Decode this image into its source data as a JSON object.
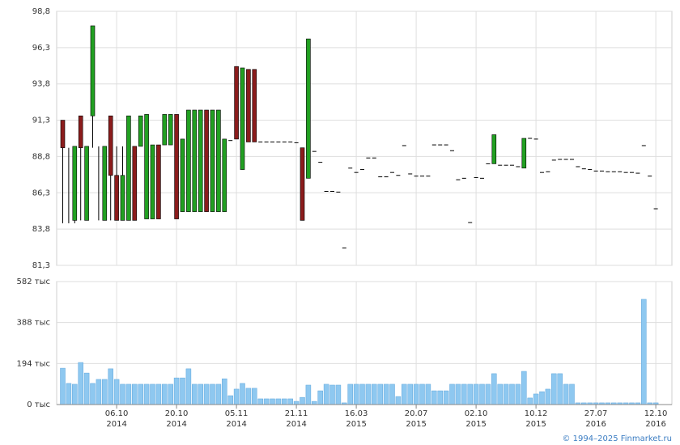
{
  "chart_data": [
    {
      "type": "candlestick",
      "up_color": "#22a022",
      "down_color": "#8b1c1c",
      "ylim": [
        81.3,
        98.8
      ],
      "yticks": [
        {
          "value": 81.3,
          "label": "81,3"
        },
        {
          "value": 83.8,
          "label": "83,8"
        },
        {
          "value": 86.3,
          "label": "86,3"
        },
        {
          "value": 88.8,
          "label": "88,8"
        },
        {
          "value": 91.3,
          "label": "91,3"
        },
        {
          "value": 93.8,
          "label": "93,8"
        },
        {
          "value": 96.3,
          "label": "96,3"
        },
        {
          "value": 98.8,
          "label": "98,8"
        }
      ],
      "xticks": [
        9,
        19,
        29,
        39,
        49,
        59,
        69,
        79,
        89,
        99
      ],
      "ohlc": [
        [
          91.3,
          91.3,
          84.2,
          89.4
        ],
        [
          89.4,
          89.4,
          84.2,
          89.4
        ],
        [
          84.4,
          89.5,
          84.2,
          89.5
        ],
        [
          91.6,
          91.6,
          84.4,
          89.4
        ],
        [
          84.4,
          89.5,
          84.4,
          89.5
        ],
        [
          91.6,
          97.8,
          89.4,
          97.8
        ],
        [
          89.5,
          89.5,
          84.4,
          89.5
        ],
        [
          84.4,
          89.5,
          84.4,
          89.5
        ],
        [
          91.6,
          91.6,
          84.4,
          87.5
        ],
        [
          87.5,
          89.5,
          84.4,
          84.4
        ],
        [
          84.4,
          89.5,
          84.4,
          87.5
        ],
        [
          84.4,
          91.6,
          84.4,
          91.6
        ],
        [
          89.5,
          89.5,
          84.4,
          84.4
        ],
        [
          89.5,
          91.6,
          89.5,
          91.6
        ],
        [
          84.5,
          91.7,
          84.5,
          91.7
        ],
        [
          84.5,
          89.6,
          84.5,
          89.6
        ],
        [
          89.6,
          89.6,
          84.5,
          84.5
        ],
        [
          89.6,
          91.7,
          89.6,
          91.7
        ],
        [
          89.6,
          91.7,
          89.6,
          91.7
        ],
        [
          91.7,
          91.7,
          84.5,
          84.5
        ],
        [
          85.0,
          90.0,
          85.0,
          90.0
        ],
        [
          85.0,
          92.0,
          85.0,
          92.0
        ],
        [
          85.0,
          92.0,
          85.0,
          92.0
        ],
        [
          85.0,
          92.0,
          85.0,
          92.0
        ],
        [
          92.0,
          92.0,
          85.0,
          85.0
        ],
        [
          85.0,
          92.0,
          85.0,
          92.0
        ],
        [
          85.0,
          92.0,
          85.0,
          92.0
        ],
        [
          85.0,
          90.0,
          85.0,
          90.0
        ],
        [
          89.9,
          89.9,
          89.9,
          89.9
        ],
        [
          95.0,
          95.0,
          90.0,
          90.0
        ],
        [
          87.9,
          94.9,
          87.9,
          94.9
        ],
        [
          94.8,
          94.8,
          89.8,
          89.8
        ],
        [
          94.8,
          94.8,
          89.8,
          89.8
        ],
        [
          89.8,
          89.8,
          89.8,
          89.8
        ],
        [
          89.8,
          89.8,
          89.8,
          89.8
        ],
        [
          89.8,
          89.8,
          89.8,
          89.8
        ],
        [
          89.8,
          89.8,
          89.8,
          89.8
        ],
        [
          89.8,
          89.8,
          89.8,
          89.8
        ],
        [
          89.8,
          89.8,
          89.8,
          89.8
        ],
        [
          89.75,
          89.75,
          89.75,
          89.75
        ],
        [
          89.4,
          89.4,
          84.4,
          84.4
        ],
        [
          87.3,
          96.9,
          87.3,
          96.9
        ],
        [
          89.15,
          89.15,
          89.15,
          89.15
        ],
        [
          88.4,
          88.4,
          88.4,
          88.4
        ],
        [
          86.4,
          86.4,
          86.4,
          86.4
        ],
        [
          86.4,
          86.4,
          86.4,
          86.4
        ],
        [
          86.35,
          86.35,
          86.35,
          86.35
        ],
        [
          82.5,
          82.5,
          82.5,
          82.5
        ],
        [
          88.0,
          88.0,
          88.0,
          88.0
        ],
        [
          87.7,
          87.7,
          87.7,
          87.7
        ],
        [
          87.9,
          87.9,
          87.9,
          87.9
        ],
        [
          88.7,
          88.7,
          88.7,
          88.7
        ],
        [
          88.7,
          88.7,
          88.7,
          88.7
        ],
        [
          87.4,
          87.4,
          87.4,
          87.4
        ],
        [
          87.4,
          87.4,
          87.4,
          87.4
        ],
        [
          87.7,
          87.7,
          87.7,
          87.7
        ],
        [
          87.5,
          87.5,
          87.5,
          87.5
        ],
        [
          89.55,
          89.55,
          89.55,
          89.55
        ],
        [
          87.6,
          87.6,
          87.6,
          87.6
        ],
        [
          87.45,
          87.45,
          87.45,
          87.45
        ],
        [
          87.45,
          87.45,
          87.45,
          87.45
        ],
        [
          87.45,
          87.45,
          87.45,
          87.45
        ],
        [
          89.6,
          89.6,
          89.6,
          89.6
        ],
        [
          89.6,
          89.6,
          89.6,
          89.6
        ],
        [
          89.6,
          89.6,
          89.6,
          89.6
        ],
        [
          89.2,
          89.2,
          89.2,
          89.2
        ],
        [
          87.2,
          87.2,
          87.2,
          87.2
        ],
        [
          87.3,
          87.3,
          87.3,
          87.3
        ],
        [
          84.25,
          84.25,
          84.25,
          84.25
        ],
        [
          87.35,
          87.35,
          87.35,
          87.35
        ],
        [
          87.3,
          87.3,
          87.3,
          87.3
        ],
        [
          88.3,
          88.3,
          88.3,
          88.3
        ],
        [
          88.3,
          90.3,
          88.3,
          90.3
        ],
        [
          88.2,
          88.2,
          88.2,
          88.2
        ],
        [
          88.2,
          88.2,
          88.2,
          88.2
        ],
        [
          88.2,
          88.2,
          88.2,
          88.2
        ],
        [
          88.1,
          88.1,
          88.1,
          88.1
        ],
        [
          88.0,
          90.05,
          88.0,
          90.05
        ],
        [
          90.05,
          90.05,
          90.05,
          90.05
        ],
        [
          90.0,
          90.0,
          90.0,
          90.0
        ],
        [
          87.7,
          87.7,
          87.7,
          87.7
        ],
        [
          87.75,
          87.75,
          87.75,
          87.75
        ],
        [
          88.55,
          88.55,
          88.55,
          88.55
        ],
        [
          88.6,
          88.6,
          88.6,
          88.6
        ],
        [
          88.6,
          88.6,
          88.6,
          88.6
        ],
        [
          88.6,
          88.6,
          88.6,
          88.6
        ],
        [
          88.1,
          88.1,
          88.1,
          88.1
        ],
        [
          87.95,
          87.95,
          87.95,
          87.95
        ],
        [
          87.9,
          87.9,
          87.9,
          87.9
        ],
        [
          87.8,
          87.8,
          87.8,
          87.8
        ],
        [
          87.8,
          87.8,
          87.8,
          87.8
        ],
        [
          87.75,
          87.75,
          87.75,
          87.75
        ],
        [
          87.75,
          87.75,
          87.75,
          87.75
        ],
        [
          87.75,
          87.75,
          87.75,
          87.75
        ],
        [
          87.7,
          87.7,
          87.7,
          87.7
        ],
        [
          87.7,
          87.7,
          87.7,
          87.7
        ],
        [
          87.65,
          87.65,
          87.65,
          87.65
        ],
        [
          89.55,
          89.55,
          89.55,
          89.55
        ],
        [
          87.45,
          87.45,
          87.45,
          87.45
        ],
        [
          85.2,
          85.2,
          85.2,
          85.2
        ]
      ]
    },
    {
      "type": "bar",
      "color": "#8ec8f0",
      "edge_color": "#5fa6dc",
      "ylim": [
        0,
        582
      ],
      "yticks": [
        {
          "value": 0,
          "label": "0 тыс"
        },
        {
          "value": 194,
          "label": "194 тыс"
        },
        {
          "value": 388,
          "label": "388 тыс"
        },
        {
          "value": 582,
          "label": "582 тыс"
        }
      ],
      "xticks": [
        {
          "value": 9,
          "label": [
            "06.10",
            "2014"
          ]
        },
        {
          "value": 19,
          "label": [
            "20.10",
            "2014"
          ]
        },
        {
          "value": 29,
          "label": [
            "05.11",
            "2014"
          ]
        },
        {
          "value": 39,
          "label": [
            "21.11",
            "2014"
          ]
        },
        {
          "value": 49,
          "label": [
            "16.03",
            "2015"
          ]
        },
        {
          "value": 59,
          "label": [
            "20.07",
            "2015"
          ]
        },
        {
          "value": 69,
          "label": [
            "02.10",
            "2015"
          ]
        },
        {
          "value": 79,
          "label": [
            "10.12",
            "2015"
          ]
        },
        {
          "value": 89,
          "label": [
            "27.07",
            "2016"
          ]
        },
        {
          "value": 99,
          "label": [
            "12.10",
            "2016"
          ]
        }
      ],
      "values": [
        172,
        100,
        96,
        199,
        149,
        100,
        119,
        119,
        169,
        119,
        96,
        96,
        96,
        96,
        96,
        96,
        96,
        96,
        96,
        126,
        126,
        169,
        96,
        96,
        96,
        96,
        96,
        122,
        42,
        73,
        100,
        77,
        77,
        27,
        27,
        27,
        27,
        27,
        27,
        15,
        34,
        92,
        15,
        65,
        96,
        92,
        92,
        8,
        96,
        96,
        96,
        96,
        96,
        96,
        96,
        96,
        38,
        96,
        96,
        96,
        96,
        96,
        65,
        65,
        65,
        96,
        96,
        96,
        96,
        96,
        96,
        96,
        146,
        96,
        96,
        96,
        96,
        157,
        31,
        50,
        61,
        73,
        146,
        146,
        96,
        96,
        8,
        8,
        8,
        8,
        8,
        8,
        8,
        8,
        8,
        8,
        8,
        498,
        8,
        8
      ]
    }
  ],
  "footer": "© 1994–2025 Finmarket.ru"
}
